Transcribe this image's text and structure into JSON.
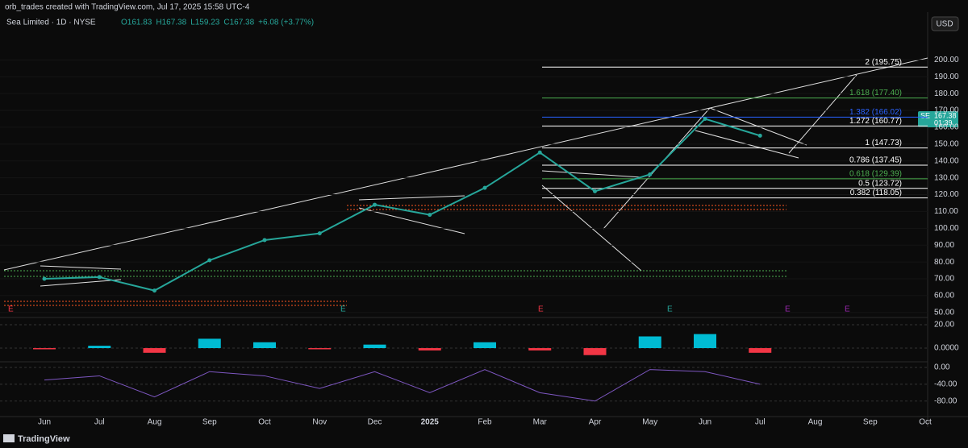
{
  "header": {
    "credit": "orb_trades created with TradingView.com, Jul 17, 2025 15:58 UTC-4",
    "symbol": "Sea Limited · 1D · NYSE",
    "ohlc": [
      "O161.83",
      "H167.38",
      "L159.23",
      "C167.38",
      "+6.08 (+3.77%)"
    ],
    "currency": "USD",
    "badge": [
      "SE",
      "167.38",
      "01:39"
    ],
    "events": [
      "E",
      "E",
      "E",
      "E",
      "E",
      "E"
    ],
    "brand": "TradingView"
  },
  "chart_data": [
    {
      "type": "line",
      "name": "price",
      "color": "#26a69a",
      "categories": [
        "Jun",
        "Jul",
        "Aug",
        "Sep",
        "Oct",
        "Nov",
        "Dec",
        "2025",
        "Feb",
        "Mar",
        "Apr",
        "May",
        "Jun",
        "Jul",
        "Aug",
        "Sep",
        "Oct"
      ],
      "values": [
        70,
        71,
        63,
        81,
        93,
        97,
        114,
        108,
        124,
        145,
        122,
        132,
        165,
        155,
        null,
        null,
        null
      ],
      "ylim": [
        48,
        226
      ],
      "yticks": [
        {
          "value": 200,
          "label": "200.00"
        },
        {
          "value": 190,
          "label": "190.00"
        },
        {
          "value": 180,
          "label": "180.00"
        },
        {
          "value": 170,
          "label": "170.00"
        },
        {
          "value": 160,
          "label": "160.00"
        },
        {
          "value": 150,
          "label": "150.00"
        },
        {
          "value": 140,
          "label": "140.00"
        },
        {
          "value": 130,
          "label": "130.00"
        },
        {
          "value": 120,
          "label": "120.00"
        },
        {
          "value": 110,
          "label": "110.00"
        },
        {
          "value": 100,
          "label": "100.00"
        },
        {
          "value": 90,
          "label": "90.00"
        },
        {
          "value": 80,
          "label": "80.00"
        },
        {
          "value": 70,
          "label": "70.00"
        },
        {
          "value": 60,
          "label": "60.00"
        },
        {
          "value": 50,
          "label": "50.00"
        }
      ],
      "levels": [
        {
          "label": "2 (195.75)",
          "value": 195.75,
          "color": "#ffffff"
        },
        {
          "label": "1.618 (177.40)",
          "value": 177.4,
          "color": "#4caf50"
        },
        {
          "label": "1.382 (166.02)",
          "value": 166.02,
          "color": "#2962ff"
        },
        {
          "label": "1.272 (160.77)",
          "value": 160.77,
          "color": "#ffffff"
        },
        {
          "label": "1 (147.73)",
          "value": 147.73,
          "color": "#ffffff"
        },
        {
          "label": "0.786 (137.45)",
          "value": 137.45,
          "color": "#ffffff"
        },
        {
          "label": "0.618 (129.39)",
          "value": 129.39,
          "color": "#4caf50"
        },
        {
          "label": "0.5 (123.72)",
          "value": 123.72,
          "color": "#ffffff"
        },
        {
          "label": "0.382 (118.05)",
          "value": 118.05,
          "color": "#ffffff"
        }
      ]
    },
    {
      "type": "bar",
      "name": "momentum",
      "positive_color": "#00bcd4",
      "negative_color": "#f23645",
      "categories": [
        "Jun",
        "Jul",
        "Aug",
        "Sep",
        "Oct",
        "Nov",
        "Dec",
        "2025",
        "Feb",
        "Mar",
        "Apr",
        "May",
        "Jun",
        "Jul",
        "Aug",
        "Sep",
        "Oct"
      ],
      "values": [
        -1,
        2,
        -4,
        8,
        5,
        -1,
        3,
        -2,
        5,
        -2,
        -6,
        10,
        12,
        -4,
        null,
        null,
        null
      ],
      "ylim": [
        -11,
        25.5
      ],
      "yticks": [
        {
          "value": 20,
          "label": "20.00"
        },
        {
          "value": 0,
          "label": "0.0000"
        }
      ]
    },
    {
      "type": "line",
      "name": "oscillator",
      "color": "#7e57c2",
      "categories": [
        "Jun",
        "Jul",
        "Aug",
        "Sep",
        "Oct",
        "Nov",
        "Dec",
        "2025",
        "Feb",
        "Mar",
        "Apr",
        "May",
        "Jun",
        "Jul",
        "Aug",
        "Sep",
        "Oct"
      ],
      "values": [
        -30,
        -20,
        -70,
        -10,
        -20,
        -50,
        -10,
        -60,
        -5,
        -60,
        -80,
        -5,
        -10,
        -40,
        null,
        null,
        null
      ],
      "ylim": [
        -113,
        11.5
      ],
      "yticks": [
        {
          "value": 0,
          "label": "0.00"
        },
        {
          "value": -40,
          "label": "-40.00"
        },
        {
          "value": -80,
          "label": "-80.00"
        }
      ]
    }
  ]
}
